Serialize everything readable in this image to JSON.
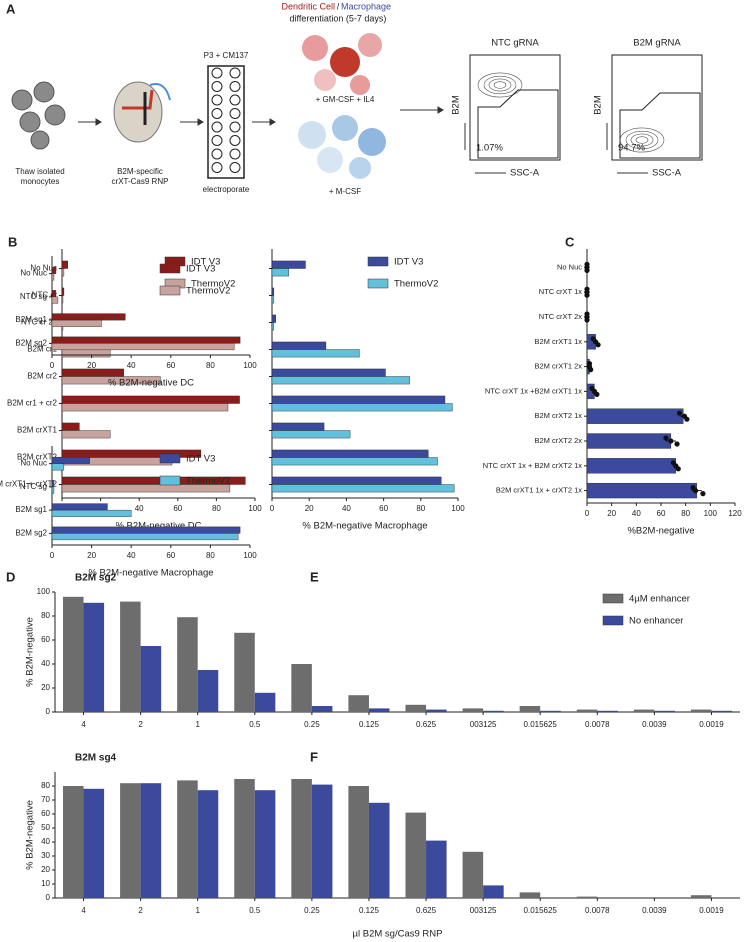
{
  "schematic": {
    "letter": "A",
    "step1": [
      "Thaw isolated",
      "monocytes"
    ],
    "step2": [
      "B2M-specific",
      "crXT-Cas9 RNP"
    ],
    "step3_top": "P3 + CM137",
    "step3_bottom": "electroporate",
    "diff_dc": "Dendritic Cell",
    "diff_slash": "/",
    "diff_mac": "Macrophage",
    "diff_line2": "differentiation (5-7 days)",
    "dc_media": "+ GM-CSF + IL4",
    "mac_media": "+ M-CSF",
    "flow": [
      {
        "title": "NTC gRNA",
        "y": "B2M",
        "x": "SSC-A",
        "pct": "1.07%"
      },
      {
        "title": "B2M gRNA",
        "y": "B2M",
        "x": "SSC-A",
        "pct": "94.7%"
      }
    ]
  },
  "chart_data": [
    {
      "panel": "B",
      "type": "hbar",
      "categories": [
        "No Nuc",
        "NTC cr",
        "NTC cr 2x",
        "B2M cr1",
        "B2M cr2",
        "B2M cr1 + cr2",
        "B2M crXT1",
        "B2M crXT2",
        "B2M crXT1 + crXT2"
      ],
      "series": [
        {
          "name": "IDT V3",
          "color": "#8b1c1c",
          "values": [
            3,
            1,
            1,
            16,
            32,
            92,
            9,
            72,
            95
          ]
        },
        {
          "name": "ThermoV2",
          "color": "#c8a29c",
          "values": [
            1,
            0.5,
            0.5,
            25,
            51,
            86,
            25,
            57,
            87
          ]
        }
      ],
      "xlim": [
        0,
        100
      ],
      "xticks": [
        0,
        20,
        40,
        60,
        80,
        100
      ],
      "xlabel": "% B2M-negative DC",
      "legend": "top-right"
    },
    {
      "type": "hbar",
      "categories": [
        null,
        null,
        null,
        null,
        null,
        null,
        null,
        null,
        null
      ],
      "series": [
        {
          "name": "IDT V3",
          "color": "#3b4a9c",
          "values": [
            18,
            1,
            2,
            29,
            61,
            93,
            28,
            84,
            91
          ]
        },
        {
          "name": "ThermoV2",
          "color": "#62c0dc",
          "values": [
            9,
            1,
            1,
            47,
            74,
            97,
            42,
            89,
            98
          ]
        }
      ],
      "xlim": [
        0,
        100
      ],
      "xticks": [
        0,
        20,
        40,
        60,
        80,
        100
      ],
      "xlabel": "% B2M-negative  Macrophage",
      "legend": "top-right"
    },
    {
      "panel": "C",
      "type": "hbar",
      "categories": [
        "No Nuc",
        "NTC crXT 1x",
        "NTC crXT 2x",
        "B2M crXT1 1x",
        "B2M crXT1 2x",
        "NTC crXT 1x +B2M crXT1 1x",
        "B2M crXT2 1x",
        "B2M crXT2 2x",
        "NTC crXT 1x + B2M crXT2 1x",
        "B2M crXT1 1x + crXT2 1x"
      ],
      "series": [
        {
          "color": "#3b4a9c",
          "values": [
            0,
            0,
            0,
            7,
            2,
            6,
            78,
            68,
            72,
            89
          ],
          "errors": [
            0,
            0,
            0,
            2,
            0.5,
            2,
            3,
            4,
            2,
            4
          ],
          "points": [
            [
              0,
              0,
              0
            ],
            [
              0,
              0,
              0
            ],
            [
              0,
              0,
              0
            ],
            [
              5,
              7,
              9
            ],
            [
              2,
              2,
              3
            ],
            [
              4,
              6,
              8
            ],
            [
              75,
              79,
              81
            ],
            [
              64,
              68,
              73
            ],
            [
              70,
              72,
              74
            ],
            [
              86,
              88,
              94
            ]
          ]
        }
      ],
      "xlim": [
        0,
        120
      ],
      "xticks": [
        0,
        20,
        40,
        60,
        80,
        100,
        120
      ],
      "xlabel": "%B2M-negative"
    },
    {
      "panel": "D",
      "type": "hbar",
      "categories": [
        "No Nuc",
        "NTC sg",
        "B2M sg1",
        "B2M sg2"
      ],
      "series": [
        {
          "name": "IDT V3",
          "color": "#8b1c1c",
          "values": [
            2,
            2,
            37,
            95
          ]
        },
        {
          "name": "ThermoV2",
          "color": "#c8a29c",
          "values": [
            1,
            3,
            25,
            92
          ]
        }
      ],
      "xlim": [
        0,
        100
      ],
      "xticks": [
        0,
        20,
        40,
        60,
        80,
        100
      ],
      "xlabel": "% B2M-negative DC",
      "legend": "top-right"
    },
    {
      "type": "hbar",
      "categories": [
        "No Nuc",
        "NTC sg",
        "B2M sg1",
        "B2M sg2"
      ],
      "series": [
        {
          "name": "IDT V3",
          "color": "#3b4a9c",
          "values": [
            19,
            1,
            28,
            95
          ]
        },
        {
          "name": "ThermoV2",
          "color": "#62c0dc",
          "values": [
            6,
            1,
            40,
            94
          ]
        }
      ],
      "xlim": [
        0,
        100
      ],
      "xticks": [
        0,
        20,
        40,
        60,
        80,
        100
      ],
      "xlabel": "% B2M-negative Macrophage",
      "legend": "top-right"
    },
    {
      "panel": "E",
      "type": "vbar",
      "title": "B2M sg2",
      "categories": [
        "4",
        "2",
        "1",
        "0.5",
        "0.25",
        "0.125",
        "0.625",
        "003125",
        "0.015625",
        "0.0078",
        "0.0039",
        "0.0019"
      ],
      "series": [
        {
          "name": "4µM enhancer",
          "color": "#6d6d6d",
          "values": [
            96,
            92,
            79,
            66,
            40,
            14,
            6,
            3,
            5,
            2,
            2,
            2
          ]
        },
        {
          "name": "No enhancer",
          "color": "#3b4a9c",
          "values": [
            91,
            55,
            35,
            16,
            5,
            3,
            2,
            1,
            1,
            1,
            1,
            1
          ]
        }
      ],
      "ylim": [
        0,
        100
      ],
      "yticks": [
        0,
        20,
        40,
        60,
        80,
        100
      ],
      "ylabel": "% B2M-negative",
      "legend": "top-right"
    },
    {
      "panel": "F",
      "type": "vbar",
      "title": "B2M sg4",
      "categories": [
        "4",
        "2",
        "1",
        "0.5",
        "0.25",
        "0.125",
        "0.625",
        "003125",
        "0.015625",
        "0.0078",
        "0.0039",
        "0.0019"
      ],
      "series": [
        {
          "color": "#6d6d6d",
          "values": [
            80,
            82,
            84,
            85,
            85,
            80,
            61,
            33,
            4,
            1,
            0,
            2
          ]
        },
        {
          "color": "#3b4a9c",
          "values": [
            78,
            82,
            77,
            77,
            81,
            68,
            41,
            9,
            0,
            0,
            0,
            0
          ]
        }
      ],
      "ylim": [
        0,
        90
      ],
      "yticks": [
        0,
        10,
        20,
        30,
        40,
        50,
        60,
        70,
        80
      ],
      "ylabel": "% B2M-negative",
      "xlabel": "µl B2M sg/Cas9 RNP"
    }
  ]
}
